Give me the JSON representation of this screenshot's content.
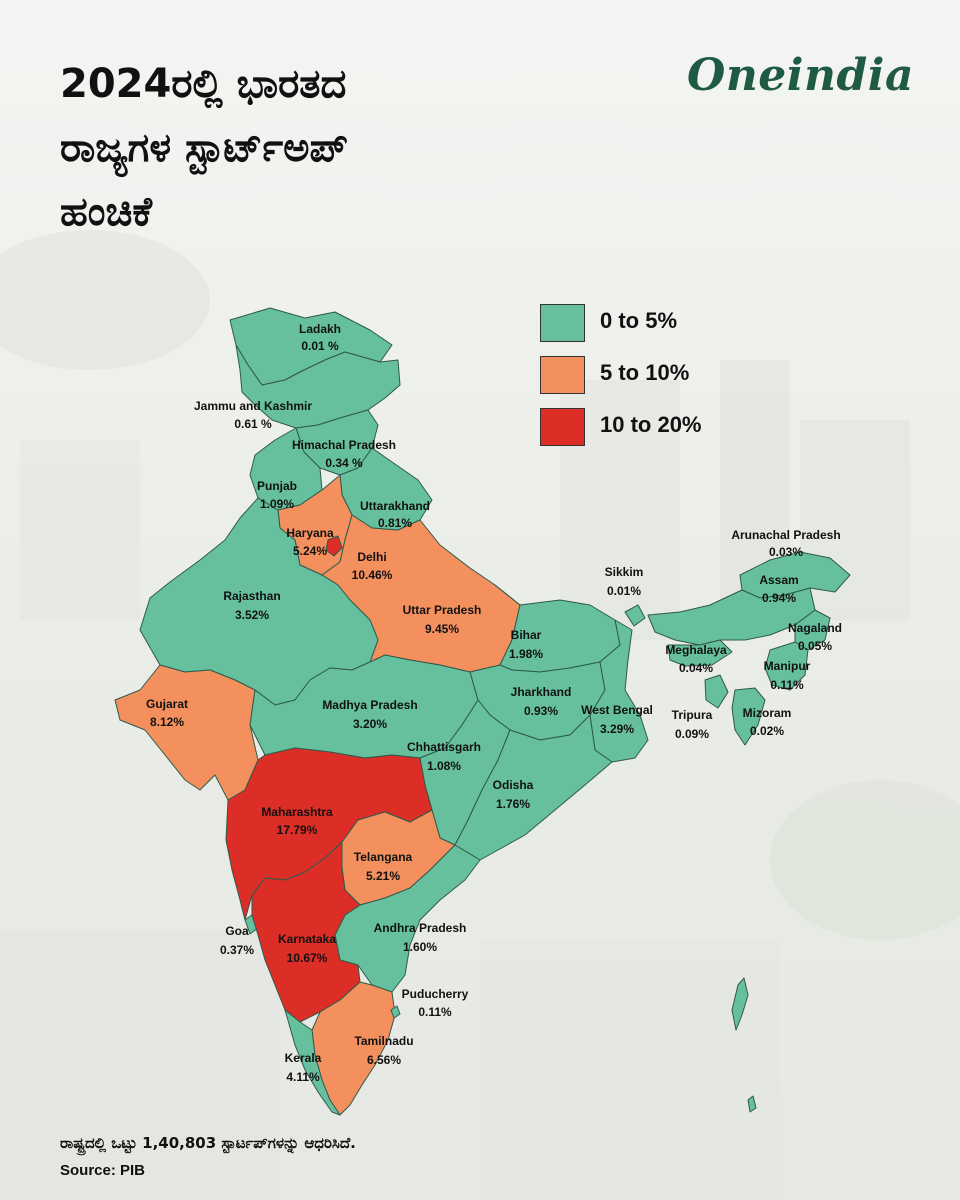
{
  "title": {
    "line1": "2024ರಲ್ಲಿ ಭಾರತದ",
    "line2": "ರಾಜ್ಯಗಳ ಸ್ಟಾರ್ಟ್‌ಅಪ್",
    "line3": "ಹಂಚಿಕೆ"
  },
  "brand": "Oneindia",
  "colors": {
    "low": "#66c09e",
    "mid": "#f4905e",
    "high": "#dc2e27",
    "border": "#2e5a4a"
  },
  "legend": [
    {
      "label": "0 to 5%",
      "color": "#66c09e"
    },
    {
      "label": "5 to 10%",
      "color": "#f4905e"
    },
    {
      "label": "10 to 20%",
      "color": "#dc2e27"
    }
  ],
  "states": [
    {
      "name": "Ladakh",
      "value": "0.01 %"
    },
    {
      "name": "Jammu and Kashmir",
      "value": "0.61 %"
    },
    {
      "name": "Himachal Pradesh",
      "value": "0.34 %"
    },
    {
      "name": "Punjab",
      "value": "1.09%"
    },
    {
      "name": "Uttarakhand",
      "value": "0.81%"
    },
    {
      "name": "Haryana",
      "value": "5.24%"
    },
    {
      "name": "Delhi",
      "value": "10.46%"
    },
    {
      "name": "Rajasthan",
      "value": "3.52%"
    },
    {
      "name": "Uttar Pradesh",
      "value": "9.45%"
    },
    {
      "name": "Bihar",
      "value": "1.98%"
    },
    {
      "name": "Gujarat",
      "value": "8.12%"
    },
    {
      "name": "Madhya Pradesh",
      "value": "3.20%"
    },
    {
      "name": "Jharkhand",
      "value": "0.93%"
    },
    {
      "name": "West Bengal",
      "value": "3.29%"
    },
    {
      "name": "Chhattisgarh",
      "value": "1.08%"
    },
    {
      "name": "Odisha",
      "value": "1.76%"
    },
    {
      "name": "Maharashtra",
      "value": "17.79%"
    },
    {
      "name": "Telangana",
      "value": "5.21%"
    },
    {
      "name": "Goa",
      "value": "0.37%"
    },
    {
      "name": "Karnataka",
      "value": "10.67%"
    },
    {
      "name": "Andhra Pradesh",
      "value": "1.60%"
    },
    {
      "name": "Puducherry",
      "value": "0.11%"
    },
    {
      "name": "Tamilnadu",
      "value": "6.56%"
    },
    {
      "name": "Kerala",
      "value": "4.11%"
    },
    {
      "name": "Arunachal Pradesh",
      "value": "0.03%"
    },
    {
      "name": "Sikkim",
      "value": "0.01%"
    },
    {
      "name": "Assam",
      "value": "0.94%"
    },
    {
      "name": "Nagaland",
      "value": "0.05%"
    },
    {
      "name": "Meghalaya",
      "value": "0.04%"
    },
    {
      "name": "Manipur",
      "value": "0.11%"
    },
    {
      "name": "Tripura",
      "value": "0.09%"
    },
    {
      "name": "Mizoram",
      "value": "0.02%"
    }
  ],
  "footer": {
    "note": "ರಾಷ್ಟ್ರದಲ್ಲಿ ಒಟ್ಟು 1,40,803 ಸ್ಟಾರ್ಟಪ್‌ಗಳನ್ನು ಆಧರಿಸಿದೆ.",
    "source": "Source: PIB"
  }
}
